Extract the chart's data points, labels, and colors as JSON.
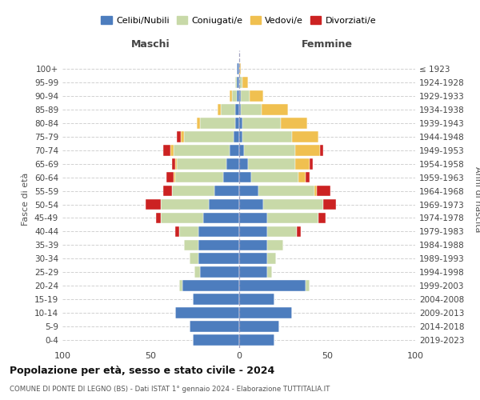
{
  "age_groups": [
    "0-4",
    "5-9",
    "10-14",
    "15-19",
    "20-24",
    "25-29",
    "30-34",
    "35-39",
    "40-44",
    "45-49",
    "50-54",
    "55-59",
    "60-64",
    "65-69",
    "70-74",
    "75-79",
    "80-84",
    "85-89",
    "90-94",
    "95-99",
    "100+"
  ],
  "birth_years": [
    "2019-2023",
    "2014-2018",
    "2009-2013",
    "2004-2008",
    "1999-2003",
    "1994-1998",
    "1989-1993",
    "1984-1988",
    "1979-1983",
    "1974-1978",
    "1969-1973",
    "1964-1968",
    "1959-1963",
    "1954-1958",
    "1949-1953",
    "1944-1948",
    "1939-1943",
    "1934-1938",
    "1929-1933",
    "1924-1928",
    "≤ 1923"
  ],
  "colors": {
    "celibi": "#4d7dbe",
    "coniugati": "#c8d9a8",
    "vedovi": "#f0c050",
    "divorziati": "#cc2222"
  },
  "males": {
    "celibi": [
      26,
      28,
      36,
      26,
      32,
      22,
      23,
      23,
      23,
      20,
      17,
      14,
      9,
      7,
      5,
      3,
      2,
      2,
      1,
      1,
      1
    ],
    "coniugati": [
      0,
      0,
      0,
      0,
      2,
      3,
      5,
      8,
      11,
      24,
      27,
      24,
      27,
      28,
      32,
      28,
      20,
      8,
      3,
      1,
      0
    ],
    "vedovi": [
      0,
      0,
      0,
      0,
      0,
      0,
      0,
      0,
      0,
      0,
      0,
      0,
      1,
      1,
      2,
      2,
      2,
      2,
      1,
      0,
      0
    ],
    "divorziati": [
      0,
      0,
      0,
      0,
      0,
      0,
      0,
      0,
      2,
      3,
      9,
      5,
      4,
      2,
      4,
      2,
      0,
      0,
      0,
      0,
      0
    ]
  },
  "females": {
    "celibi": [
      20,
      23,
      30,
      20,
      38,
      16,
      16,
      16,
      16,
      16,
      14,
      11,
      7,
      5,
      3,
      2,
      2,
      1,
      1,
      0,
      0
    ],
    "coniugati": [
      0,
      0,
      0,
      0,
      2,
      3,
      5,
      9,
      17,
      29,
      34,
      32,
      27,
      27,
      29,
      28,
      22,
      12,
      5,
      2,
      0
    ],
    "vedovi": [
      0,
      0,
      0,
      0,
      0,
      0,
      0,
      0,
      0,
      0,
      0,
      1,
      4,
      8,
      14,
      15,
      15,
      15,
      8,
      3,
      1
    ],
    "divorziati": [
      0,
      0,
      0,
      0,
      0,
      0,
      0,
      0,
      2,
      4,
      7,
      8,
      2,
      2,
      2,
      0,
      0,
      0,
      0,
      0,
      0
    ]
  },
  "title": "Popolazione per età, sesso e stato civile - 2024",
  "subtitle": "COMUNE DI PONTE DI LEGNO (BS) - Dati ISTAT 1° gennaio 2024 - Elaborazione TUTTITALIA.IT",
  "xlabel_left": "Maschi",
  "xlabel_right": "Femmine",
  "ylabel_left": "Fasce di età",
  "ylabel_right": "Anni di nascita",
  "legend_labels": [
    "Celibi/Nubili",
    "Coniugati/e",
    "Vedovi/e",
    "Divorziati/e"
  ],
  "xlim": 100,
  "background_color": "#ffffff",
  "grid_color": "#cccccc"
}
